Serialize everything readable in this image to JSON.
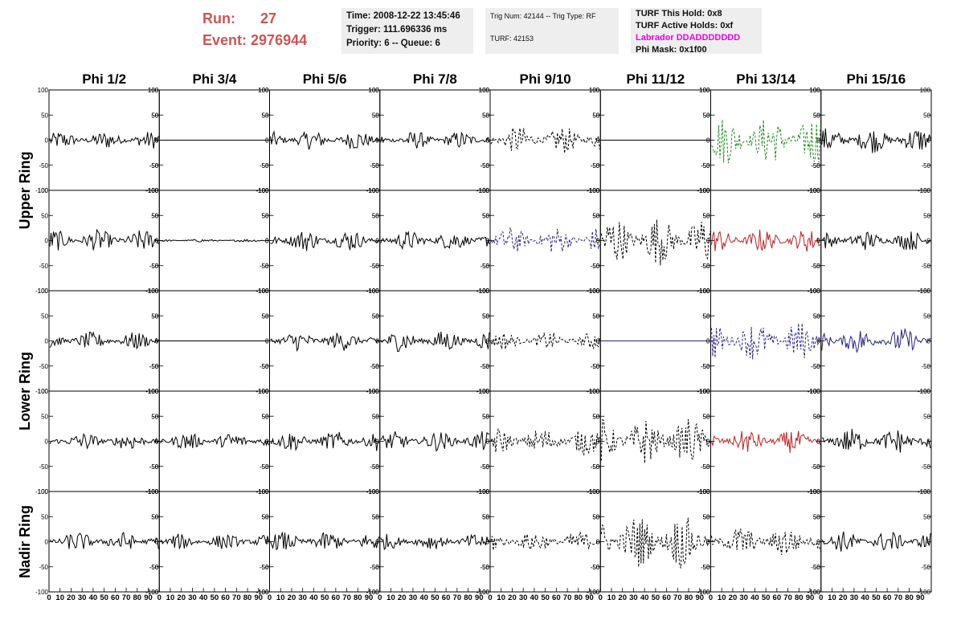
{
  "header": {
    "run_label": "Run:",
    "run_value": "27",
    "event_label": "Event:",
    "event_value": "2976944",
    "info1": [
      "Time: 2008-12-22 13:45:46",
      "Trigger: 111.696336 ms",
      "Priority: 6 -- Queue: 6"
    ],
    "info2": [
      "Trig Num: 42144 -- Trig Type: RF",
      "TURF: 42153"
    ],
    "info3": [
      "TURF This Hold: 0x8",
      "TURF Active Holds: 0xf",
      "Labrador DDADDDDDDD",
      "Phi Mask: 0x1f00"
    ]
  },
  "colors": {
    "header_red": "#cc5555",
    "magenta": "#ee00ee",
    "black": "#000000",
    "green": "#228822",
    "blue": "#222288",
    "red": "#bb2222"
  },
  "chart_data": {
    "type": "line",
    "columns": [
      "Phi 1/2",
      "Phi 3/4",
      "Phi 5/6",
      "Phi 7/8",
      "Phi 9/10",
      "Phi 11/12",
      "Phi 13/14",
      "Phi 15/16"
    ],
    "ring_labels": [
      "Upper Ring",
      "Lower Ring",
      "Nadir Ring"
    ],
    "rows": 5,
    "xlim": [
      0,
      100
    ],
    "ylim": [
      -100,
      100
    ],
    "y_tick_labels": [
      "100",
      "50",
      "0",
      "-50",
      "-100"
    ],
    "x_tick_labels": [
      "0",
      "10",
      "20",
      "30",
      "40",
      "50",
      "60",
      "70",
      "80",
      "90"
    ],
    "panels": [
      [
        {
          "amp": 18,
          "color": "black",
          "dash": false
        },
        {
          "amp": 0,
          "color": "black",
          "dash": false
        },
        {
          "amp": 20,
          "color": "black",
          "dash": false
        },
        {
          "amp": 18,
          "color": "black",
          "dash": false
        },
        {
          "amp": 28,
          "color": "black",
          "dash": true
        },
        {
          "amp": 0,
          "color": "black",
          "dash": false
        },
        {
          "amp": 50,
          "color": "green",
          "dash": true
        },
        {
          "amp": 26,
          "color": "black",
          "dash": false
        }
      ],
      [
        {
          "amp": 22,
          "color": "black",
          "dash": false
        },
        {
          "amp": 3,
          "color": "black",
          "dash": false
        },
        {
          "amp": 22,
          "color": "black",
          "dash": false
        },
        {
          "amp": 20,
          "color": "black",
          "dash": false
        },
        {
          "amp": 28,
          "color": "blue",
          "dash": true
        },
        {
          "amp": 50,
          "color": "black",
          "dash": true
        },
        {
          "amp": 24,
          "color": "red",
          "dash": false
        },
        {
          "amp": 20,
          "color": "black",
          "dash": false
        }
      ],
      [
        {
          "amp": 18,
          "color": "black",
          "dash": false
        },
        {
          "amp": 0,
          "color": "black",
          "dash": false
        },
        {
          "amp": 20,
          "color": "black",
          "dash": false
        },
        {
          "amp": 22,
          "color": "black",
          "dash": false
        },
        {
          "amp": 18,
          "color": "black",
          "dash": true
        },
        {
          "amp": 0,
          "color": "blue",
          "dash": false
        },
        {
          "amp": 40,
          "color": "blue",
          "dash": true
        },
        {
          "amp": 26,
          "color": "blue",
          "dash": false
        }
      ],
      [
        {
          "amp": 18,
          "color": "black",
          "dash": false
        },
        {
          "amp": 18,
          "color": "black",
          "dash": false
        },
        {
          "amp": 20,
          "color": "black",
          "dash": false
        },
        {
          "amp": 20,
          "color": "black",
          "dash": false
        },
        {
          "amp": 28,
          "color": "black",
          "dash": true
        },
        {
          "amp": 48,
          "color": "black",
          "dash": true
        },
        {
          "amp": 24,
          "color": "red",
          "dash": false
        },
        {
          "amp": 26,
          "color": "black",
          "dash": false
        }
      ],
      [
        {
          "amp": 20,
          "color": "black",
          "dash": false
        },
        {
          "amp": 16,
          "color": "black",
          "dash": false
        },
        {
          "amp": 20,
          "color": "black",
          "dash": false
        },
        {
          "amp": 16,
          "color": "black",
          "dash": false
        },
        {
          "amp": 22,
          "color": "black",
          "dash": true
        },
        {
          "amp": 55,
          "color": "black",
          "dash": true
        },
        {
          "amp": 32,
          "color": "black",
          "dash": true
        },
        {
          "amp": 22,
          "color": "black",
          "dash": false
        }
      ]
    ]
  }
}
